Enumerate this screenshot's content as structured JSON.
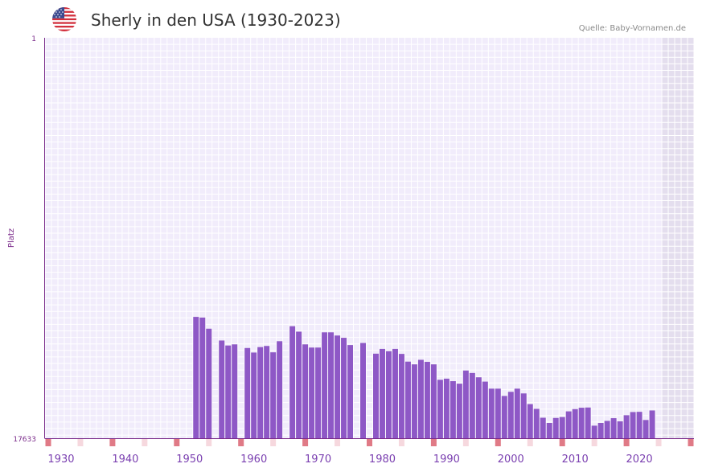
{
  "title": "Sherly in den USA (1930-2023)",
  "source": "Quelle: Baby-Vornamen.de",
  "chart_data": {
    "type": "bar",
    "title": "Sherly in den USA (1930-2023)",
    "ylabel": "Platz",
    "xlabel": "",
    "ylim": [
      17633,
      1
    ],
    "ytick_labels": [
      "1",
      "17633"
    ],
    "xticks": [
      1930,
      1940,
      1950,
      1960,
      1970,
      1980,
      1990,
      2000,
      2010,
      2020
    ],
    "x_range": [
      1928,
      2028
    ],
    "future_start": 2024,
    "x": [
      1951,
      1952,
      1953,
      1955,
      1956,
      1957,
      1959,
      1960,
      1961,
      1962,
      1963,
      1964,
      1966,
      1967,
      1968,
      1969,
      1970,
      1971,
      1972,
      1973,
      1974,
      1975,
      1977,
      1979,
      1980,
      1981,
      1982,
      1983,
      1984,
      1985,
      1986,
      1987,
      1988,
      1989,
      1990,
      1991,
      1992,
      1993,
      1994,
      1995,
      1996,
      1997,
      1998,
      1999,
      2000,
      2001,
      2002,
      2003,
      2004,
      2005,
      2006,
      2007,
      2008,
      2009,
      2010,
      2011,
      2012,
      2013,
      2014,
      2015,
      2016,
      2017,
      2018,
      2019,
      2020,
      2021,
      2022
    ],
    "values": [
      12290,
      12320,
      12810,
      13330,
      13550,
      13500,
      13660,
      13860,
      13620,
      13570,
      13850,
      13360,
      12700,
      12940,
      13500,
      13640,
      13640,
      12970,
      12970,
      13110,
      13210,
      13530,
      13440,
      13910,
      13700,
      13800,
      13700,
      13920,
      14260,
      14380,
      14180,
      14270,
      14380,
      15060,
      15010,
      15120,
      15230,
      14650,
      14760,
      14950,
      15140,
      15450,
      15450,
      15770,
      15590,
      15450,
      15660,
      16130,
      16340,
      16730,
      16960,
      16740,
      16700,
      16450,
      16350,
      16290,
      16280,
      17080,
      16960,
      16870,
      16750,
      16890,
      16620,
      16480,
      16470,
      16830,
      16410
    ],
    "series_color": "#8e58c6",
    "decade_marker_years": [
      1928,
      1938,
      1948,
      1958,
      1968,
      1978,
      1988,
      1998,
      2008,
      2018,
      2028
    ],
    "faint_marker_years": [
      1933,
      1943,
      1953,
      1963,
      1973,
      1983,
      1993,
      2003,
      2013,
      2023
    ],
    "marker_color": "#e07a86",
    "faint_marker_color": "#f6d8de"
  }
}
